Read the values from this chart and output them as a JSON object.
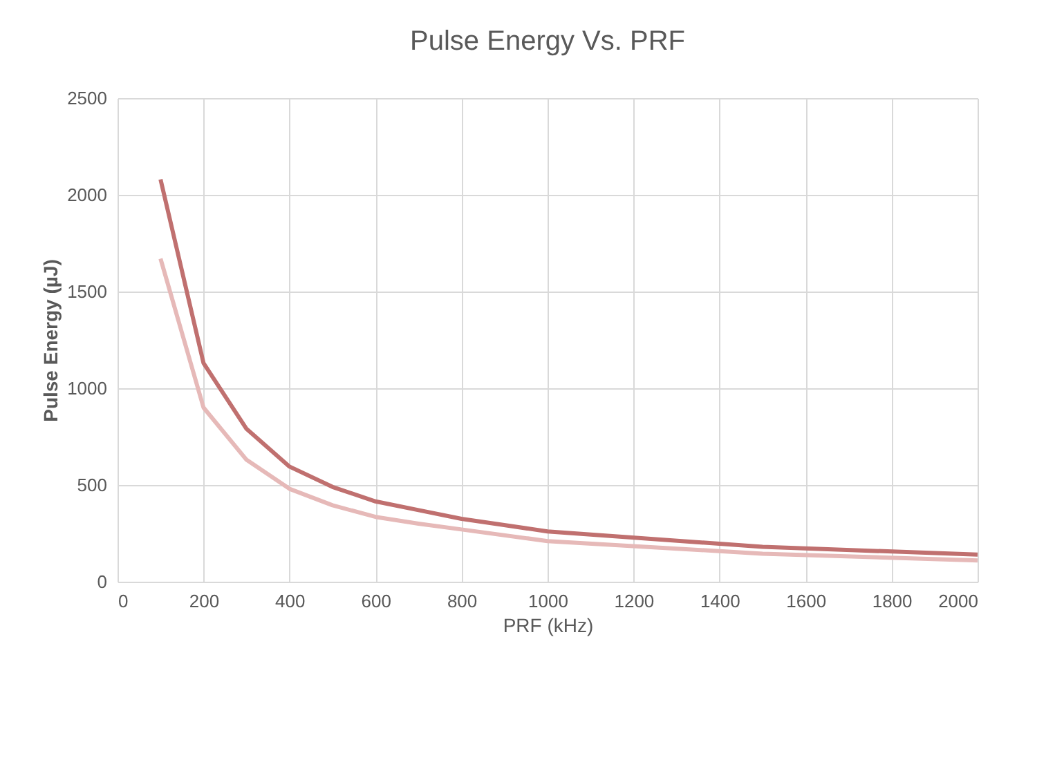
{
  "chart_data": {
    "type": "line",
    "title": "Pulse Energy Vs. PRF",
    "xlabel": "PRF (kHz)",
    "ylabel": "Pulse Energy (µJ)",
    "x": [
      100,
      200,
      300,
      400,
      500,
      600,
      700,
      800,
      1000,
      1500,
      2000
    ],
    "series": [
      {
        "color": "#e6b9b8",
        "values": [
          1670,
          900,
          630,
          480,
          395,
          335,
          300,
          270,
          210,
          145,
          110
        ]
      },
      {
        "color": "#c0706f",
        "values": [
          2080,
          1130,
          790,
          595,
          490,
          415,
          370,
          325,
          260,
          180,
          140
        ]
      }
    ],
    "xlim": [
      0,
      2000
    ],
    "xticks": [
      0,
      200,
      400,
      600,
      800,
      1000,
      1200,
      1400,
      1600,
      1800,
      2000
    ],
    "ylim": [
      0,
      2500
    ],
    "yticks": [
      0,
      500,
      1000,
      1500,
      2000,
      2500
    ],
    "grid": true,
    "marker": "none",
    "line_style": "solid"
  }
}
